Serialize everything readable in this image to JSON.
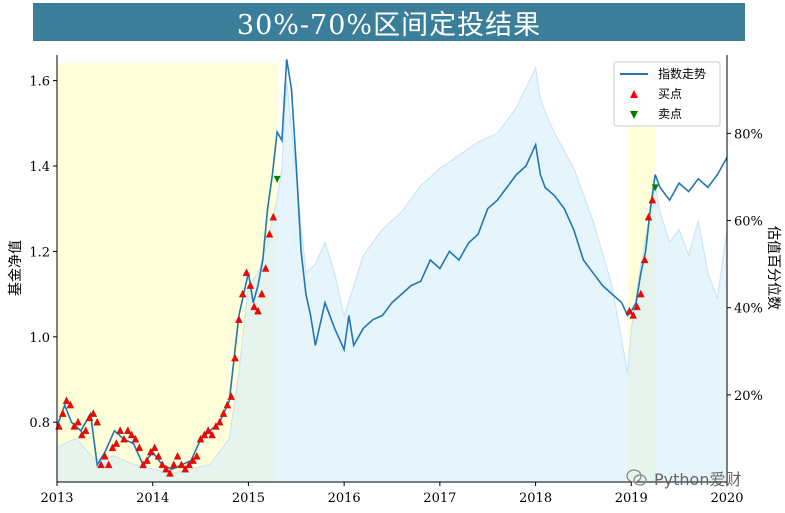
{
  "chart_data": {
    "type": "line",
    "title": "30%-70%区间定投结果",
    "ylabel_left": "基金净值",
    "ylabel_right": "估值百分位数",
    "x_ticks": [
      "2013",
      "2014",
      "2015",
      "2016",
      "2017",
      "2018",
      "2019",
      "2020"
    ],
    "x_range": [
      2013.0,
      2020.0
    ],
    "y_left_range": [
      0.66,
      1.66
    ],
    "y_left_ticks": [
      "0.8",
      "1.0",
      "1.2",
      "1.4",
      "1.6"
    ],
    "y_left_tick_values": [
      0.8,
      1.0,
      1.2,
      1.4,
      1.6
    ],
    "y_right_range": [
      0.0,
      0.98
    ],
    "y_right_ticks": [
      "20%",
      "40%",
      "60%",
      "80%"
    ],
    "y_right_tick_values": [
      0.2,
      0.4,
      0.6,
      0.8
    ],
    "legend_position": "top-right",
    "legend": [
      {
        "label": "指数走势",
        "kind": "line",
        "color": "#1f77b4"
      },
      {
        "label": "买点",
        "kind": "triangle-up",
        "color": "#ff0000"
      },
      {
        "label": "卖点",
        "kind": "triangle-down",
        "color": "#008000"
      }
    ],
    "invest_windows": [
      {
        "start": 2013.0,
        "end": 2015.3
      },
      {
        "start": 2018.96,
        "end": 2019.25
      }
    ],
    "index_series": {
      "name": "指数走势",
      "color": "#1f77b4",
      "x": [
        2013.0,
        2013.08,
        2013.15,
        2013.25,
        2013.35,
        2013.42,
        2013.5,
        2013.6,
        2013.7,
        2013.8,
        2013.9,
        2014.0,
        2014.1,
        2014.2,
        2014.3,
        2014.4,
        2014.5,
        2014.6,
        2014.7,
        2014.8,
        2014.9,
        2015.0,
        2015.05,
        2015.1,
        2015.15,
        2015.2,
        2015.25,
        2015.3,
        2015.35,
        2015.4,
        2015.45,
        2015.5,
        2015.55,
        2015.6,
        2015.65,
        2015.7,
        2015.8,
        2015.9,
        2016.0,
        2016.05,
        2016.1,
        2016.2,
        2016.3,
        2016.4,
        2016.5,
        2016.6,
        2016.7,
        2016.8,
        2016.9,
        2017.0,
        2017.1,
        2017.2,
        2017.3,
        2017.4,
        2017.5,
        2017.6,
        2017.7,
        2017.8,
        2017.9,
        2018.0,
        2018.05,
        2018.1,
        2018.2,
        2018.3,
        2018.4,
        2018.5,
        2018.6,
        2018.7,
        2018.8,
        2018.9,
        2018.96,
        2019.0,
        2019.05,
        2019.1,
        2019.15,
        2019.2,
        2019.25,
        2019.3,
        2019.4,
        2019.5,
        2019.6,
        2019.7,
        2019.8,
        2019.9,
        2020.0
      ],
      "y": [
        0.79,
        0.84,
        0.8,
        0.78,
        0.82,
        0.7,
        0.73,
        0.78,
        0.76,
        0.75,
        0.7,
        0.73,
        0.7,
        0.69,
        0.7,
        0.71,
        0.76,
        0.78,
        0.8,
        0.85,
        1.05,
        1.15,
        1.08,
        1.12,
        1.18,
        1.3,
        1.38,
        1.48,
        1.46,
        1.65,
        1.58,
        1.4,
        1.2,
        1.1,
        1.05,
        0.98,
        1.08,
        1.02,
        0.97,
        1.05,
        0.98,
        1.02,
        1.04,
        1.05,
        1.08,
        1.1,
        1.12,
        1.13,
        1.18,
        1.16,
        1.2,
        1.18,
        1.22,
        1.24,
        1.3,
        1.32,
        1.35,
        1.38,
        1.4,
        1.45,
        1.38,
        1.35,
        1.33,
        1.3,
        1.25,
        1.18,
        1.15,
        1.12,
        1.1,
        1.08,
        1.05,
        1.06,
        1.08,
        1.15,
        1.2,
        1.3,
        1.38,
        1.35,
        1.32,
        1.36,
        1.34,
        1.37,
        1.35,
        1.38,
        1.42
      ]
    },
    "percentile_series": {
      "x": [
        2013.0,
        2013.2,
        2013.4,
        2013.6,
        2013.8,
        2014.0,
        2014.2,
        2014.4,
        2014.6,
        2014.8,
        2014.9,
        2015.0,
        2015.1,
        2015.2,
        2015.3,
        2015.35,
        2015.4,
        2015.5,
        2015.6,
        2015.7,
        2015.8,
        2015.9,
        2016.0,
        2016.1,
        2016.2,
        2016.4,
        2016.6,
        2016.8,
        2017.0,
        2017.2,
        2017.4,
        2017.6,
        2017.8,
        2018.0,
        2018.05,
        2018.1,
        2018.2,
        2018.4,
        2018.6,
        2018.8,
        2018.96,
        2019.0,
        2019.1,
        2019.2,
        2019.25,
        2019.3,
        2019.4,
        2019.5,
        2019.6,
        2019.7,
        2019.8,
        2019.9,
        2020.0
      ],
      "y": [
        0.08,
        0.1,
        0.05,
        0.06,
        0.04,
        0.03,
        0.02,
        0.03,
        0.04,
        0.1,
        0.25,
        0.45,
        0.48,
        0.55,
        0.65,
        0.72,
        0.92,
        0.7,
        0.48,
        0.5,
        0.55,
        0.48,
        0.38,
        0.45,
        0.52,
        0.58,
        0.62,
        0.68,
        0.72,
        0.75,
        0.78,
        0.8,
        0.86,
        0.95,
        0.88,
        0.85,
        0.8,
        0.72,
        0.6,
        0.45,
        0.25,
        0.35,
        0.5,
        0.62,
        0.68,
        0.62,
        0.55,
        0.58,
        0.52,
        0.6,
        0.48,
        0.42,
        0.58
      ]
    },
    "buy_points": {
      "x": [
        2013.02,
        2013.06,
        2013.1,
        2013.14,
        2013.18,
        2013.22,
        2013.26,
        2013.3,
        2013.34,
        2013.38,
        2013.42,
        2013.46,
        2013.5,
        2013.54,
        2013.58,
        2013.62,
        2013.66,
        2013.7,
        2013.74,
        2013.78,
        2013.82,
        2013.86,
        2013.9,
        2013.94,
        2013.98,
        2014.02,
        2014.06,
        2014.1,
        2014.14,
        2014.18,
        2014.22,
        2014.26,
        2014.3,
        2014.34,
        2014.38,
        2014.42,
        2014.46,
        2014.5,
        2014.54,
        2014.58,
        2014.62,
        2014.66,
        2014.7,
        2014.74,
        2014.78,
        2014.82,
        2014.86,
        2014.9,
        2014.94,
        2014.98,
        2015.02,
        2015.06,
        2015.1,
        2015.14,
        2015.18,
        2015.22,
        2015.26,
        2018.98,
        2019.02,
        2019.06,
        2019.1,
        2019.14,
        2019.18,
        2019.22
      ],
      "y": [
        0.79,
        0.82,
        0.85,
        0.84,
        0.79,
        0.8,
        0.77,
        0.78,
        0.81,
        0.82,
        0.8,
        0.7,
        0.72,
        0.7,
        0.74,
        0.75,
        0.78,
        0.76,
        0.78,
        0.77,
        0.76,
        0.74,
        0.7,
        0.71,
        0.73,
        0.74,
        0.72,
        0.7,
        0.69,
        0.68,
        0.7,
        0.72,
        0.7,
        0.69,
        0.7,
        0.71,
        0.72,
        0.76,
        0.77,
        0.78,
        0.77,
        0.79,
        0.8,
        0.82,
        0.84,
        0.86,
        0.95,
        1.04,
        1.1,
        1.15,
        1.12,
        1.07,
        1.06,
        1.1,
        1.16,
        1.24,
        1.28,
        1.06,
        1.05,
        1.07,
        1.1,
        1.18,
        1.28,
        1.32
      ]
    },
    "sell_points": {
      "x": [
        2015.3,
        2019.25
      ],
      "y": [
        1.37,
        1.35
      ]
    }
  },
  "watermark": {
    "text": "Python爱财",
    "icon": "wechat-icon"
  }
}
